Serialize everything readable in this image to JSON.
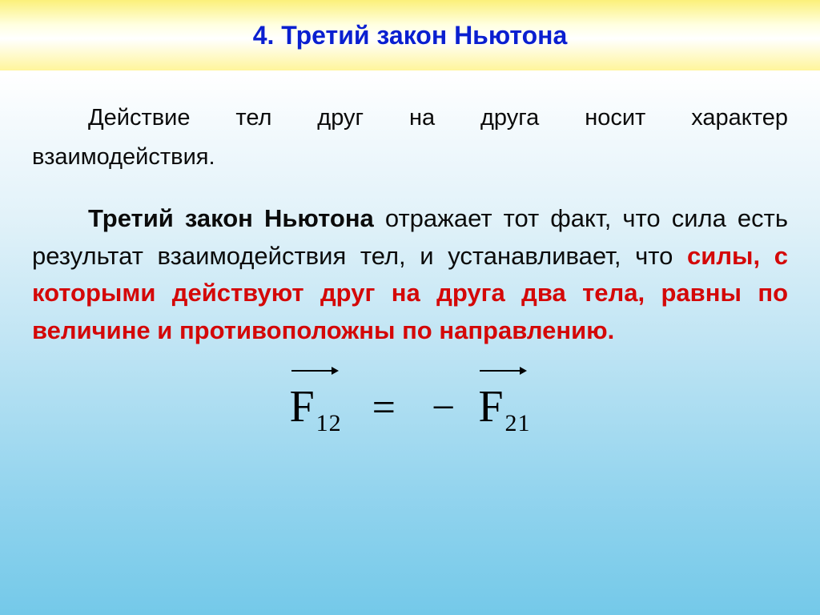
{
  "header": {
    "title": "4. Третий закон Ньютона",
    "title_color": "#0a1fd0",
    "title_fontsize": 32,
    "bg_gradient": [
      "#fbf07a",
      "#ffffe0",
      "#ffffff",
      "#fff59b"
    ]
  },
  "body": {
    "bg_gradient": [
      "#ffffff",
      "#e2f2f9",
      "#93d4ee",
      "#74c9e9"
    ],
    "para1_line1": "Действие тел друг на друга носит характер",
    "para1_line2": "взаимодействия.",
    "para1_color": "#0b0b0b",
    "para1_fontsize": 29,
    "para2_fontsize": 31,
    "para2_black_color": "#0b0b0b",
    "para2_red_color": "#d40808",
    "p2_seg1_boldblack": "Третий закон Ньютона",
    "p2_seg2_plain": " отражает тот факт, что сила есть результат взаимодействия тел, и устанавливает, что ",
    "p2_seg3_boldred": "силы, с которыми действуют друг на друга два тела, равны по величине и противоположны по направлению."
  },
  "formula": {
    "lhs_letter": "F",
    "lhs_sub": "12",
    "eq": "=",
    "minus": "−",
    "rhs_letter": "F",
    "rhs_sub": "21",
    "font": "Times New Roman",
    "fontsize": 52,
    "color": "#000000",
    "has_vector_arrows": true
  }
}
